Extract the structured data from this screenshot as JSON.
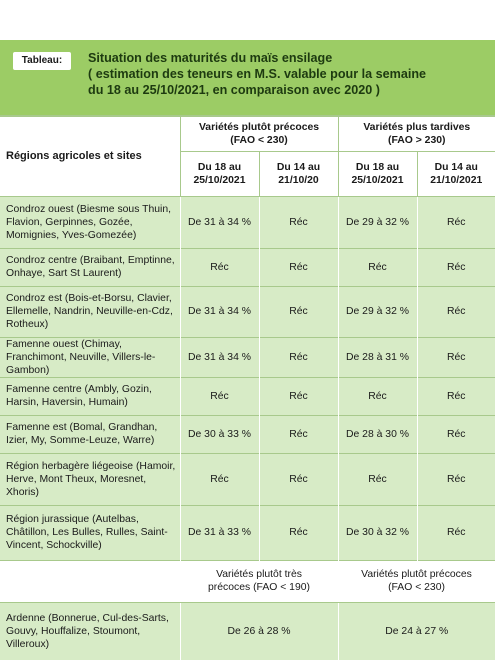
{
  "header": {
    "tag": "Tableau:",
    "title_lines": [
      "Situation des maturités du maïs ensilage",
      "( estimation des teneurs en M.S. valable pour la semaine",
      "du 18 au 25/10/2021, en comparaison avec 2020 )"
    ]
  },
  "table": {
    "regions_header": "Régions agricoles et sites",
    "group_headers": [
      "Variétés plutôt précoces (FAO < 230)",
      "Variétés plus tardives (FAO > 230)"
    ],
    "group_headers_lines": [
      [
        "Variétés plutôt précoces",
        "(FAO < 230)"
      ],
      [
        "Variétés plus tardives",
        "(FAO > 230)"
      ]
    ],
    "date_headers": [
      [
        "Du 18 au",
        "25/10/2021"
      ],
      [
        "Du 14 au",
        "21/10/20"
      ],
      [
        "Du 18 au",
        "25/10/2021"
      ],
      [
        "Du 14 au",
        "21/10/2021"
      ]
    ],
    "rows": [
      {
        "region": "Condroz ouest (Biesme sous Thuin, Flavion, Gerpinnes, Gozée, Momignies, Yves-Gomezée)",
        "values": [
          "De 31 à 34 %",
          "Réc",
          "De 29 à 32 %",
          "Réc"
        ]
      },
      {
        "region": "Condroz centre (Braibant, Emptinne, Onhaye, Sart St Laurent)",
        "values": [
          "Réc",
          "Réc",
          "Réc",
          "Réc"
        ]
      },
      {
        "region": "Condroz est (Bois-et-Borsu, Clavier, Ellemelle, Nandrin, Neuville-en-Cdz, Rotheux)",
        "values": [
          "De 31 à 34 %",
          "Réc",
          "De 29 à 32 %",
          "Réc"
        ]
      },
      {
        "region": "Famenne ouest (Chimay, Franchimont, Neuville, Villers-le-Gambon)",
        "values": [
          "De 31 à 34 %",
          "Réc",
          "De 28 à 31 %",
          "Réc"
        ]
      },
      {
        "region": "Famenne centre (Ambly, Gozin, Harsin, Haversin, Humain)",
        "values": [
          "Réc",
          "Réc",
          "Réc",
          "Réc"
        ]
      },
      {
        "region": "Famenne est (Bomal, Grandhan, Izier, My, Somme-Leuze, Warre)",
        "values": [
          "De 30 à 33 %",
          "Réc",
          "De 28 à 30 %",
          "Réc"
        ]
      },
      {
        "region": "Région herbagère liégeoise (Hamoir, Herve, Mont Theux, Moresnet, Xhoris)",
        "values": [
          "Réc",
          "Réc",
          "Réc",
          "Réc"
        ]
      },
      {
        "region": "Région jurassique (Autelbas, Châtillon, Les Bulles, Rulles, Saint-Vincent, Schockville)",
        "values": [
          "De 31 à 33 %",
          "Réc",
          "De 30 à 32 %",
          "Réc"
        ]
      }
    ],
    "ardenne_group_headers": [
      [
        "Variétés plutôt très",
        "précoces (FAO < 190)"
      ],
      [
        "Variétés plutôt précoces",
        "(FAO < 230)"
      ]
    ],
    "ardenne": {
      "region": "Ardenne (Bonnerue, Cul-des-Sarts, Gouvy, Houffalize, Stoumont, Villeroux)",
      "values": [
        "De 26 à 28 %",
        "De 24 à 27 %"
      ]
    }
  }
}
